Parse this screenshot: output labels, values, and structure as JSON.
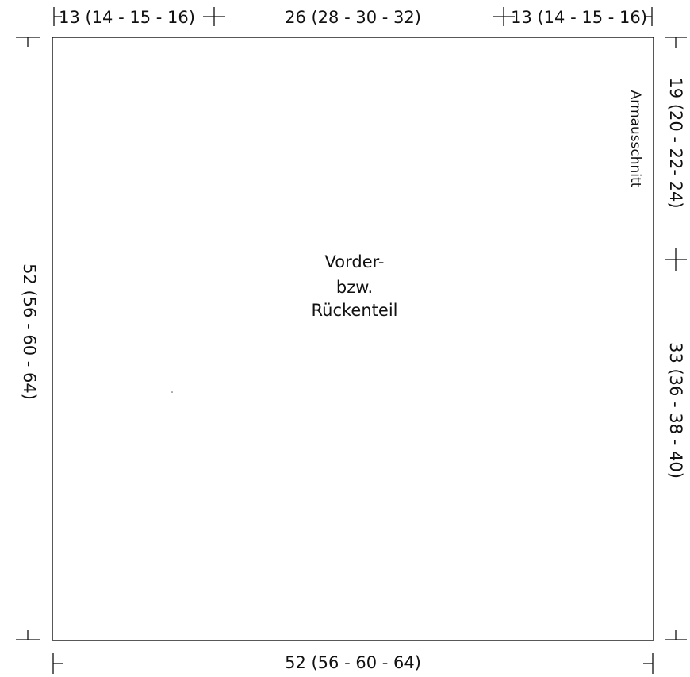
{
  "pattern": {
    "panel_label_lines": [
      "Vorder-",
      "bzw.",
      "Rückenteil"
    ],
    "armhole_label": "Armausschnitt"
  },
  "dimensions": {
    "top_left_shoulder": "13 (14 - 15 - 16)",
    "top_neck": "26 (28 - 30 - 32)",
    "top_right_shoulder": "13 (14 - 15 - 16)",
    "right_armhole": "19 (20 - 22- 24)",
    "right_body": "33 (36 - 38 - 40)",
    "left_length": "52 (56 - 60 - 64)",
    "bottom_width": "52 (56 - 60 - 64)"
  }
}
